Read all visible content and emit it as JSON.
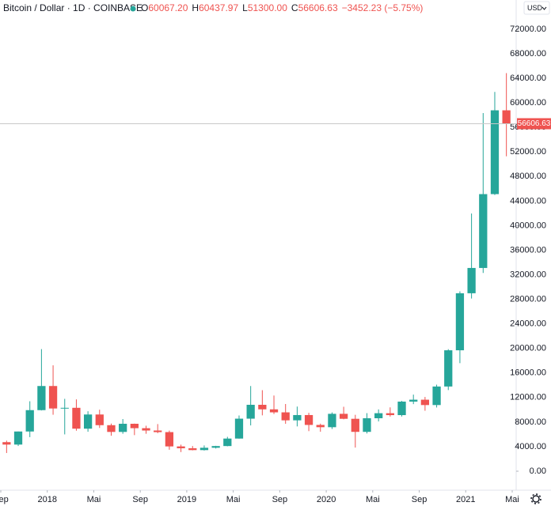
{
  "chart_data": {
    "type": "candlestick",
    "header": {
      "symbol": "Bitcoin / Dollar · 1D · COINBASE",
      "ohlc": [
        {
          "key": "O",
          "value": "60067.20"
        },
        {
          "key": "H",
          "value": "60437.97"
        },
        {
          "key": "L",
          "value": "51300.00"
        },
        {
          "key": "C",
          "value": "56606.63"
        }
      ],
      "change": "−3452.23 (−5.75%)"
    },
    "currency": "USD",
    "up_color": "#26a69a",
    "down_color": "#ef5350",
    "x": [
      "2017-09",
      "2017-10",
      "2017-11",
      "2017-12",
      "2018-01",
      "2018-02",
      "2018-03",
      "2018-04",
      "2018-05",
      "2018-06",
      "2018-07",
      "2018-08",
      "2018-09",
      "2018-10",
      "2018-11",
      "2018-12",
      "2019-01",
      "2019-02",
      "2019-03",
      "2019-04",
      "2019-05",
      "2019-06",
      "2019-07",
      "2019-08",
      "2019-09",
      "2019-10",
      "2019-11",
      "2019-12",
      "2020-01",
      "2020-02",
      "2020-03",
      "2020-04",
      "2020-05",
      "2020-06",
      "2020-07",
      "2020-08",
      "2020-09",
      "2020-10",
      "2020-11",
      "2020-12",
      "2021-01",
      "2021-02",
      "2021-03",
      "2021-04"
    ],
    "open": [
      4735,
      4340,
      6470,
      9950,
      13880,
      10220,
      10330,
      6930,
      9240,
      7500,
      6400,
      7730,
      7010,
      6630,
      6370,
      4040,
      3740,
      3440,
      3820,
      4100,
      5320,
      8560,
      10820,
      10080,
      9590,
      8290,
      9150,
      7540,
      7170,
      9350,
      8540,
      6410,
      8630,
      9450,
      9140,
      11340,
      11650,
      10780,
      13800,
      19700,
      28990,
      33110,
      45140,
      58790
    ],
    "high": [
      4980,
      6470,
      11400,
      19890,
      17250,
      11790,
      11700,
      9770,
      10020,
      7760,
      8500,
      7760,
      7410,
      7680,
      6620,
      4330,
      4100,
      4200,
      4140,
      5600,
      9080,
      13880,
      13200,
      12330,
      10950,
      10530,
      9510,
      7750,
      9580,
      10500,
      9190,
      9460,
      10070,
      10400,
      11450,
      12480,
      12100,
      14100,
      19880,
      29300,
      41980,
      58350,
      61790,
      64850
    ],
    "low": [
      2970,
      4110,
      5550,
      9900,
      9200,
      6000,
      6600,
      6430,
      7050,
      5780,
      6100,
      5880,
      6100,
      6200,
      3500,
      3120,
      3400,
      3370,
      3700,
      4060,
      5300,
      7460,
      9100,
      9320,
      7730,
      7300,
      6530,
      6430,
      6880,
      8460,
      3850,
      6150,
      8110,
      8900,
      8910,
      10930,
      9850,
      10380,
      13220,
      17600,
      28130,
      32300,
      45000,
      51300
    ],
    "close": [
      4340,
      6470,
      9950,
      13880,
      10220,
      10330,
      6930,
      9240,
      7500,
      6400,
      7730,
      7010,
      6630,
      6370,
      4040,
      3740,
      3440,
      3820,
      4100,
      5320,
      8560,
      10820,
      10080,
      9590,
      8290,
      9150,
      7540,
      7170,
      9350,
      8540,
      6410,
      8630,
      9450,
      9140,
      11340,
      11650,
      10780,
      13800,
      19700,
      28990,
      33110,
      45140,
      58790,
      56606.63
    ],
    "xlim": [
      "2017-09",
      "2021-05"
    ],
    "xticks": [
      {
        "value": "2017-09",
        "label": "Sep"
      },
      {
        "value": "2018-01",
        "label": "2018"
      },
      {
        "value": "2018-05",
        "label": "Mai"
      },
      {
        "value": "2018-09",
        "label": "Sep"
      },
      {
        "value": "2019-01",
        "label": "2019"
      },
      {
        "value": "2019-05",
        "label": "Mai"
      },
      {
        "value": "2019-09",
        "label": "Sep"
      },
      {
        "value": "2020-01",
        "label": "2020"
      },
      {
        "value": "2020-05",
        "label": "Mai"
      },
      {
        "value": "2020-09",
        "label": "Sep"
      },
      {
        "value": "2021-01",
        "label": "2021"
      },
      {
        "value": "2021-05",
        "label": "Mai"
      }
    ],
    "ylim": [
      -3090,
      76760
    ],
    "yticks": [
      {
        "value": 0,
        "label": "0.00"
      },
      {
        "value": 4000,
        "label": "4000.00"
      },
      {
        "value": 8000,
        "label": "8000.00"
      },
      {
        "value": 12000,
        "label": "12000.00"
      },
      {
        "value": 16000,
        "label": "16000.00"
      },
      {
        "value": 20000,
        "label": "20000.00"
      },
      {
        "value": 24000,
        "label": "24000.00"
      },
      {
        "value": 28000,
        "label": "28000.00"
      },
      {
        "value": 32000,
        "label": "32000.00"
      },
      {
        "value": 36000,
        "label": "36000.00"
      },
      {
        "value": 40000,
        "label": "40000.00"
      },
      {
        "value": 44000,
        "label": "44000.00"
      },
      {
        "value": 48000,
        "label": "48000.00"
      },
      {
        "value": 52000,
        "label": "52000.00"
      },
      {
        "value": 56000,
        "label": "56000.00"
      },
      {
        "value": 60000,
        "label": "60000.00"
      },
      {
        "value": 64000,
        "label": "64000.00"
      },
      {
        "value": 68000,
        "label": "68000.00"
      },
      {
        "value": 72000,
        "label": "72000.00"
      }
    ],
    "last_price": {
      "value": 56606.63,
      "label": "56606.63"
    }
  }
}
